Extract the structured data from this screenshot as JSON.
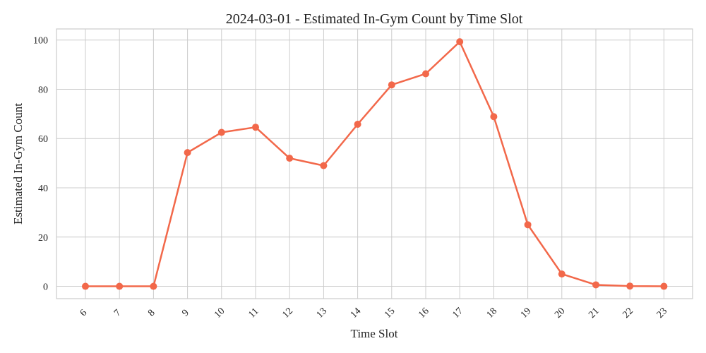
{
  "chart_data": {
    "type": "line",
    "title": "2024-03-01 - Estimated In-Gym Count by Time Slot",
    "xlabel": "Time Slot",
    "ylabel": "Estimated In-Gym Count",
    "categories": [
      "6",
      "7",
      "8",
      "9",
      "10",
      "11",
      "12",
      "13",
      "14",
      "15",
      "16",
      "17",
      "18",
      "19",
      "20",
      "21",
      "22",
      "23"
    ],
    "series": [
      {
        "values": [
          0,
          0,
          0,
          54.3,
          62.5,
          64.6,
          52.0,
          49.0,
          65.8,
          81.8,
          86.3,
          99.3,
          68.9,
          25.0,
          5.0,
          0.6,
          0.1,
          0.0
        ]
      }
    ],
    "ylim": [
      -5,
      104.5
    ],
    "yticks": [
      0,
      20,
      40,
      60,
      80,
      100
    ],
    "grid": true,
    "legend": "none",
    "colors": {
      "line": "#f2684a",
      "grid": "#cccccc"
    }
  }
}
